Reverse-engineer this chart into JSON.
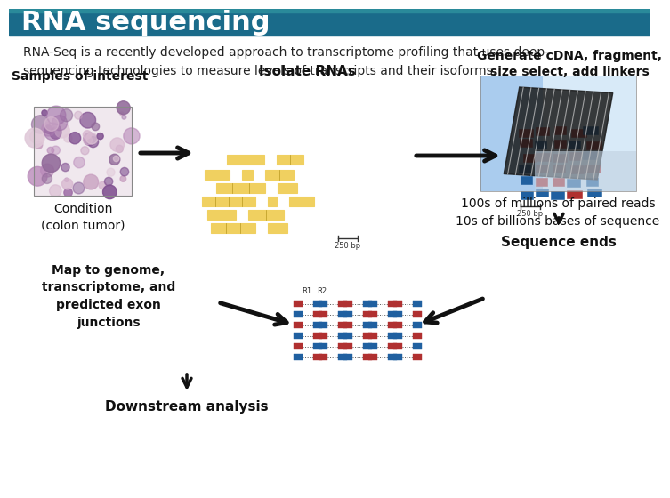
{
  "title": "RNA sequencing",
  "title_bar_color": "#1a6b8a",
  "title_text_color": "#ffffff",
  "background_color": "#ffffff",
  "title_fontsize": 22,
  "subtitle_text": "RNA-Seq is a recently developed approach to transcriptome profiling that uses deep-\nsequencing technologies to measure levels of transcripts and their isoforms.",
  "subtitle_fontsize": 10,
  "subtitle_color": "#222222",
  "label_samples": "Samples of interest",
  "label_condition": "Condition\n(colon tumor)",
  "label_isolate": "Isolate RNAs",
  "label_generate": "Generate cDNA, fragment,\nsize select, add linkers",
  "label_sequence_ends": "Sequence ends",
  "label_map": "Map to genome,\ntranscriptome, and\npredicted exon\njunctions",
  "label_downstream": "Downstream analysis",
  "label_100s": "100s of millions of paired reads\n10s of billions bases of sequence",
  "label_250bp_1": "250 bp",
  "label_250bp_2": "250 bp",
  "label_r1": "R1",
  "label_r2": "R2",
  "label_fontsize": 9,
  "arrow_color": "#111111",
  "rna_bar_color": "#f0d060",
  "rna_bar_outline": "#b89820",
  "cdna_red": "#b03030",
  "cdna_blue": "#2060a0",
  "cdna_outline": "#555555",
  "tissue_bg": "#e8d0e0",
  "tissue_pink1": "#c090b0",
  "tissue_pink2": "#9060a0",
  "tissue_pink3": "#d8b8c8",
  "sequencer_bg": "#c8e0f0",
  "sequencer_stripe": "#e0eef8",
  "sequencer_dark": "#303030",
  "sequencer_blue": "#6090c0"
}
